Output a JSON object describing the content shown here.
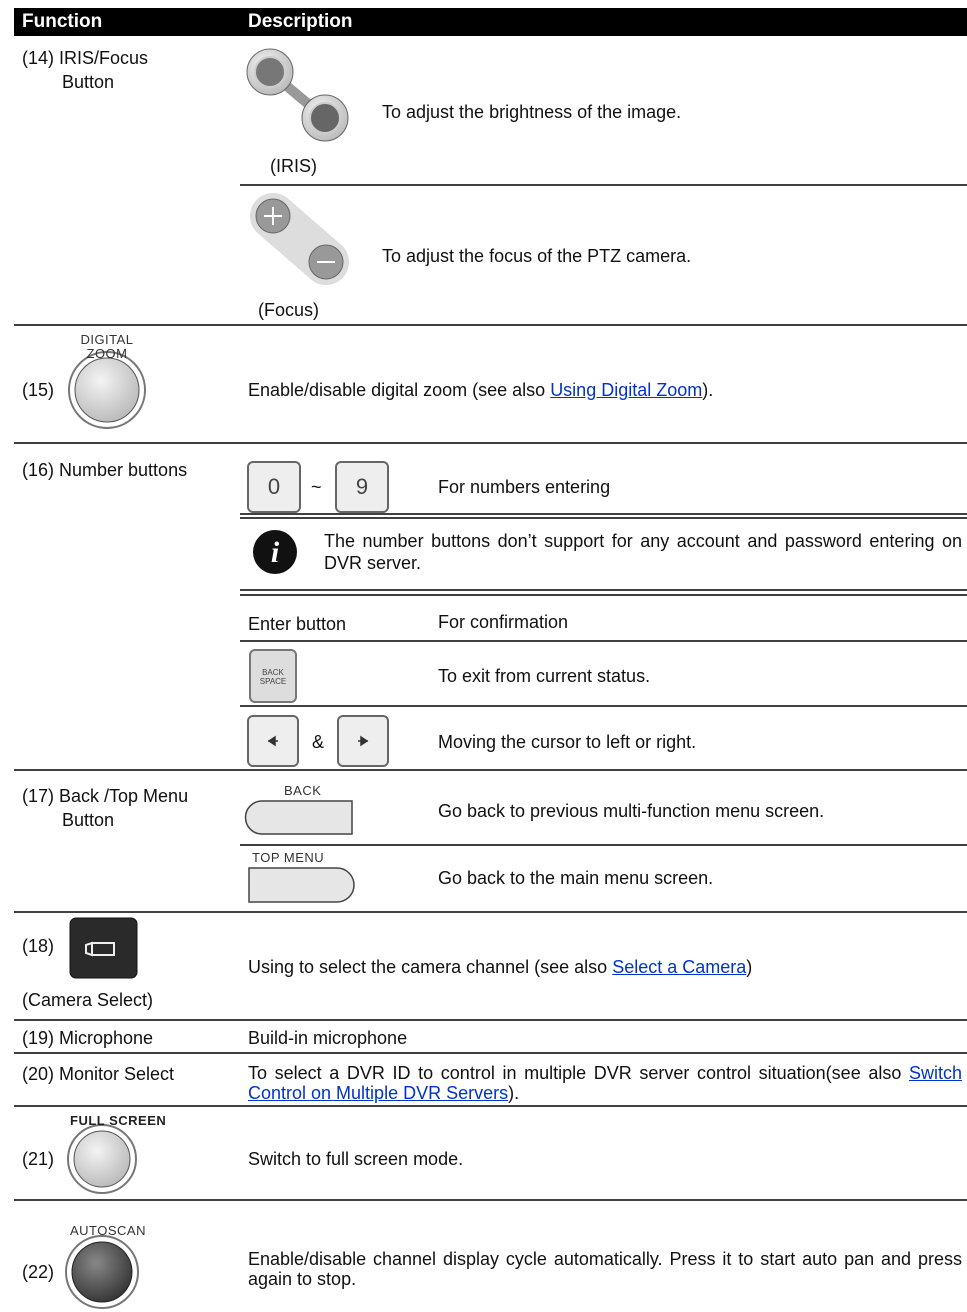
{
  "table": {
    "header": [
      "Function",
      "Description"
    ],
    "rows": [
      {
        "function": [
          "(14) IRIS/Focus",
          "Button"
        ],
        "items": [
          {
            "caption": "(IRIS)",
            "text": "To adjust the brightness of the image."
          },
          {
            "caption": "(Focus)",
            "text": "To adjust the focus of the PTZ camera."
          }
        ]
      },
      {
        "function": "(15)",
        "button_label": [
          "DIGITAL",
          "ZOOM"
        ],
        "text": "Enable/disable digital zoom (see also ",
        "link": "Using Digital Zoom",
        "text_end": ")."
      },
      {
        "function": "(16) Number buttons",
        "items": [
          {
            "keys": [
              "0",
              "9"
            ],
            "separator": "~",
            "text": "For numbers entering"
          },
          {
            "note": "The number buttons don’t support for any account and password entering on DVR server."
          },
          {
            "label": "Enter button",
            "text": "For confirmation"
          },
          {
            "key": [
              "BACK",
              "SPACE"
            ],
            "text": "To exit from current status."
          },
          {
            "separator": "&",
            "text": "Moving the cursor to left or right."
          }
        ]
      },
      {
        "function": [
          "(17) Back /Top Menu",
          "Button"
        ],
        "items": [
          {
            "key": "BACK",
            "text": "Go back to previous multi-function menu screen."
          },
          {
            "key": "TOP MENU",
            "text": "Go back to the main menu screen."
          }
        ]
      },
      {
        "function": "(18)",
        "caption": "(Camera Select)",
        "text": "Using to select the camera channel (see also ",
        "link": "Select a Camera",
        "text_end": ")"
      },
      {
        "function": "(19) Microphone",
        "text": "Build-in microphone"
      },
      {
        "function": "(20) Monitor Select",
        "text": "To select a DVR ID to control in multiple DVR server control situation(see also ",
        "link": "Switch Control on Multiple DVR Servers",
        "text_end": ")."
      },
      {
        "function": "(21)",
        "button_label": "FULL SCREEN",
        "text": "Switch to full screen mode."
      },
      {
        "function": "(22)",
        "button_label": "AUTOSCAN",
        "text": "Enable/disable channel display cycle automatically. Press it to start auto pan and press again to stop."
      }
    ]
  }
}
